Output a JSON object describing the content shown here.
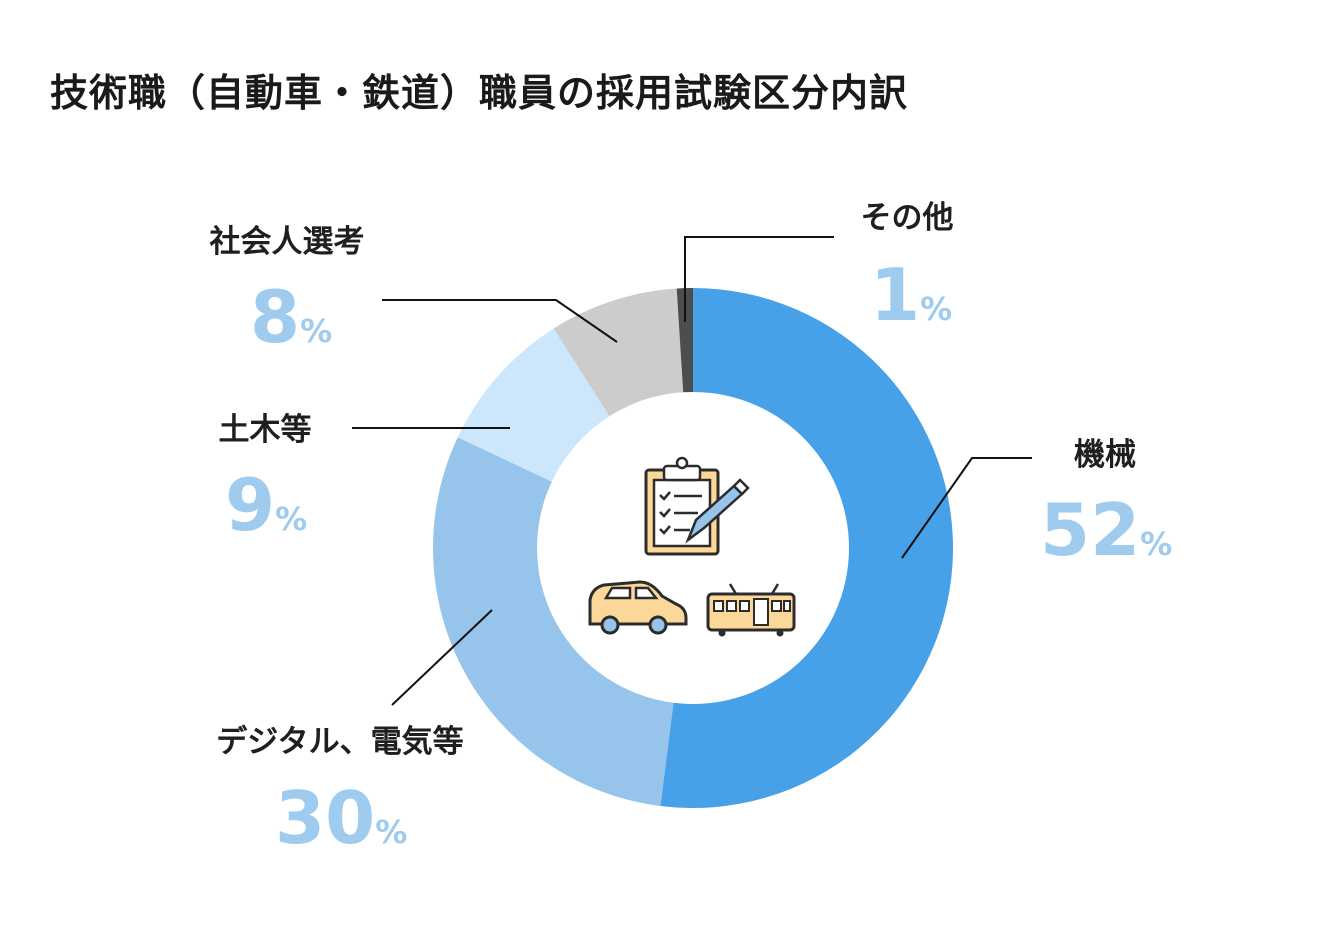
{
  "title": "技術職（自動車・鉄道）職員の採用試験区分内訳",
  "chart_data": {
    "type": "pie",
    "title": "技術職（自動車・鉄道）職員の採用試験区分内訳",
    "unit": "%",
    "slices": [
      {
        "label": "機械",
        "value": 52,
        "color": "#47a1e8"
      },
      {
        "label": "デジタル、電気等",
        "value": 30,
        "color": "#96c4ea"
      },
      {
        "label": "土木等",
        "value": 9,
        "color": "#cce6fb"
      },
      {
        "label": "社会人選考",
        "value": 8,
        "color": "#cccccc"
      },
      {
        "label": "その他",
        "value": 1,
        "color": "#4d4d4d"
      }
    ],
    "percent_color": "#9ecbee"
  },
  "icons": [
    "clipboard-pen-icon",
    "car-icon",
    "train-icon"
  ]
}
